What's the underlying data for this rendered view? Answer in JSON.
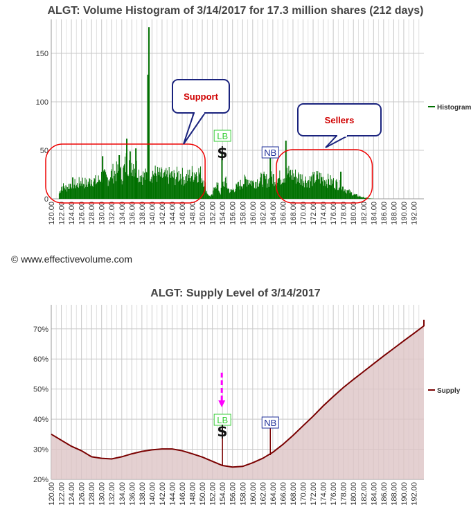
{
  "copyright": "© www.effectivevolume.com",
  "chart_data": [
    {
      "type": "bar",
      "title": "ALGT: Volume Histogram of 3/14/2017 for 17.3 million shares (212 days)",
      "legend": "Histogram",
      "legend_position": "right",
      "grid": true,
      "xlim": [
        120,
        194
      ],
      "ylim": [
        0,
        185
      ],
      "y_ticks": [
        "0",
        "50",
        "100",
        "150"
      ],
      "x_ticks": [
        "120.00",
        "122.00",
        "124.00",
        "126.00",
        "128.00",
        "130.00",
        "132.00",
        "134.00",
        "136.00",
        "138.00",
        "140.00",
        "142.00",
        "144.00",
        "146.00",
        "148.00",
        "150.00",
        "152.00",
        "154.00",
        "156.00",
        "158.00",
        "160.00",
        "162.00",
        "164.00",
        "166.00",
        "168.00",
        "170.00",
        "172.00",
        "174.00",
        "176.00",
        "178.00",
        "180.00",
        "182.00",
        "184.00",
        "186.00",
        "188.00",
        "190.00",
        "192.00"
      ],
      "color": "#007000",
      "profile": [
        [
          121.5,
          6
        ],
        [
          122,
          14
        ],
        [
          123,
          12
        ],
        [
          124,
          18
        ],
        [
          125,
          15
        ],
        [
          126,
          20
        ],
        [
          127,
          16
        ],
        [
          128,
          22
        ],
        [
          129,
          18
        ],
        [
          130,
          26
        ],
        [
          131,
          22
        ],
        [
          132,
          28
        ],
        [
          133,
          30
        ],
        [
          134,
          26
        ],
        [
          134.8,
          40
        ],
        [
          135.5,
          42
        ],
        [
          136.5,
          38
        ],
        [
          137.5,
          28
        ],
        [
          138.5,
          24
        ],
        [
          139.5,
          30
        ],
        [
          140.5,
          28
        ],
        [
          141.5,
          26
        ],
        [
          142.5,
          24
        ],
        [
          143.5,
          26
        ],
        [
          144.5,
          24
        ],
        [
          145.5,
          28
        ],
        [
          146.5,
          22
        ],
        [
          147.5,
          26
        ],
        [
          148.5,
          30
        ],
        [
          149.5,
          28
        ],
        [
          150.3,
          20
        ],
        [
          150.8,
          8
        ],
        [
          151.3,
          3
        ],
        [
          152,
          4
        ],
        [
          152.5,
          18
        ],
        [
          153,
          14
        ],
        [
          153.5,
          6
        ],
        [
          154,
          16
        ],
        [
          154.5,
          20
        ],
        [
          155,
          12
        ],
        [
          155.5,
          8
        ],
        [
          156,
          10
        ],
        [
          157,
          14
        ],
        [
          158,
          18
        ],
        [
          159,
          22
        ],
        [
          160,
          18
        ],
        [
          161,
          20
        ],
        [
          162,
          22
        ],
        [
          163,
          20
        ],
        [
          164,
          24
        ],
        [
          165,
          22
        ],
        [
          166,
          26
        ],
        [
          167,
          28
        ],
        [
          168,
          26
        ],
        [
          169,
          24
        ],
        [
          170,
          22
        ],
        [
          171,
          20
        ],
        [
          172,
          22
        ],
        [
          173,
          24
        ],
        [
          174,
          22
        ],
        [
          175,
          20
        ],
        [
          176,
          18
        ],
        [
          177,
          16
        ],
        [
          178,
          12
        ],
        [
          179,
          8
        ],
        [
          180,
          5
        ],
        [
          181,
          3
        ],
        [
          182,
          1.5
        ],
        [
          183,
          0.5
        ],
        [
          184,
          0
        ]
      ],
      "spikes": [
        [
          139.4,
          177
        ],
        [
          139.2,
          128
        ],
        [
          135,
          62
        ],
        [
          136.8,
          52
        ],
        [
          133.5,
          45
        ],
        [
          153.9,
          48
        ],
        [
          163.5,
          45
        ],
        [
          166.6,
          60
        ],
        [
          130.2,
          44
        ],
        [
          177.5,
          28
        ]
      ],
      "callouts": [
        {
          "label": "Support",
          "x": 138.8,
          "y": 95
        },
        {
          "label": "Sellers",
          "x": 173.5,
          "y": 70
        }
      ],
      "circles": [
        [
          120,
          150
        ],
        [
          165.8,
          183.2
        ]
      ],
      "markers": [
        {
          "label": "LB",
          "x": 154,
          "color": "#33cc33"
        },
        {
          "label": "NB",
          "x": 163.5,
          "color": "#1f2f99"
        }
      ],
      "dollar_symbol": "$"
    },
    {
      "type": "area",
      "title": "ALGT: Supply Level of 3/14/2017",
      "legend": "Supply",
      "legend_position": "right",
      "grid": true,
      "xlim": [
        120,
        194
      ],
      "ylim": [
        20,
        78
      ],
      "y_ticks": [
        "20%",
        "30%",
        "40%",
        "50%",
        "60%",
        "70%"
      ],
      "x_ticks": [
        "120.00",
        "122.00",
        "124.00",
        "126.00",
        "128.00",
        "130.00",
        "132.00",
        "134.00",
        "136.00",
        "138.00",
        "140.00",
        "142.00",
        "144.00",
        "146.00",
        "148.00",
        "150.00",
        "152.00",
        "154.00",
        "156.00",
        "158.00",
        "160.00",
        "162.00",
        "164.00",
        "166.00",
        "168.00",
        "170.00",
        "172.00",
        "174.00",
        "176.00",
        "178.00",
        "180.00",
        "182.00",
        "184.00",
        "186.00",
        "188.00",
        "190.00",
        "192.00"
      ],
      "line_color": "#7a0000",
      "fill_color": "#ddc4c6",
      "points": [
        [
          120,
          35
        ],
        [
          122,
          33
        ],
        [
          124,
          31
        ],
        [
          126,
          29.5
        ],
        [
          128,
          27.5
        ],
        [
          130,
          27
        ],
        [
          132,
          26.8
        ],
        [
          134,
          27.5
        ],
        [
          136,
          28.5
        ],
        [
          138,
          29.3
        ],
        [
          140,
          29.8
        ],
        [
          142,
          30.1
        ],
        [
          144,
          30.1
        ],
        [
          146,
          29.5
        ],
        [
          148,
          28.5
        ],
        [
          150,
          27.4
        ],
        [
          152,
          26
        ],
        [
          154,
          24.6
        ],
        [
          156,
          24.1
        ],
        [
          158,
          24.3
        ],
        [
          160,
          25.5
        ],
        [
          162,
          27
        ],
        [
          164,
          29
        ],
        [
          166,
          31.6
        ],
        [
          168,
          34.6
        ],
        [
          170,
          37.8
        ],
        [
          172,
          41
        ],
        [
          174,
          44.4
        ],
        [
          176,
          47.5
        ],
        [
          178,
          50.5
        ],
        [
          180,
          53.2
        ],
        [
          182,
          55.8
        ],
        [
          184,
          58.4
        ],
        [
          186,
          61
        ],
        [
          188,
          63.5
        ],
        [
          190,
          66
        ],
        [
          192,
          68.5
        ],
        [
          194,
          71
        ],
        [
          195,
          73
        ]
      ],
      "markers": [
        {
          "label": "LB",
          "x": 154,
          "color": "#33cc33"
        },
        {
          "label": "NB",
          "x": 163.5,
          "color": "#1f2f99"
        }
      ],
      "dollar_symbol": "$",
      "arrow_color": "#ff00ff"
    }
  ]
}
